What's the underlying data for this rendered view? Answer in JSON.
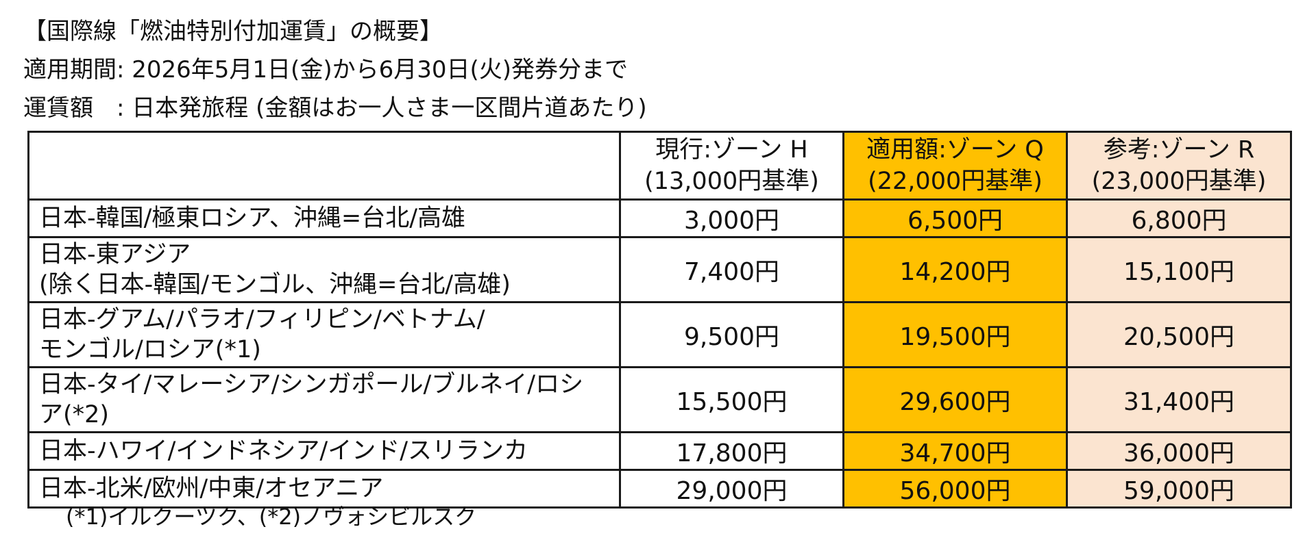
{
  "title": "【国際線「燃油特別付加運賃」の概要】",
  "period_line": "適用期間: 2026年5月1日(金)から6月30日(火)発券分まで",
  "fare_line": "運賃額　: 日本発旅程 (金額はお一人さま一区間片道あたり)",
  "table": {
    "headers": [
      {
        "line1": "",
        "line2": ""
      },
      {
        "line1": "現行:ゾーン H",
        "line2": "(13,000円基準)"
      },
      {
        "line1": "適用額:ゾーン Q",
        "line2": "(22,000円基準)"
      },
      {
        "line1": "参考:ゾーン R",
        "line2": "(23,000円基準)"
      }
    ],
    "rows": [
      {
        "route": [
          "日本-韓国/極東ロシア、沖縄=台北/高雄"
        ],
        "h": "3,000円",
        "q": "6,500円",
        "r": "6,800円"
      },
      {
        "route": [
          "日本-東アジア",
          "(除く日本-韓国/モンゴル、沖縄=台北/高雄)"
        ],
        "h": "7,400円",
        "q": "14,200円",
        "r": "15,100円"
      },
      {
        "route": [
          "日本-グアム/パラオ/フィリピン/ベトナム/",
          "モンゴル/ロシア(*1)"
        ],
        "h": "9,500円",
        "q": "19,500円",
        "r": "20,500円"
      },
      {
        "route": [
          "日本-タイ/マレーシア/シンガポール/ブルネイ/ロシ",
          "ア(*2)"
        ],
        "h": "15,500円",
        "q": "29,600円",
        "r": "31,400円"
      },
      {
        "route": [
          "日本-ハワイ/インドネシア/インド/スリランカ"
        ],
        "h": "17,800円",
        "q": "34,700円",
        "r": "36,000円"
      },
      {
        "route": [
          "日本-北米/欧州/中東/オセアニア"
        ],
        "h": "29,000円",
        "q": "56,000円",
        "r": "59,000円"
      }
    ]
  },
  "footnote": "(*1)イルクーツク、(*2)ノヴォシビルスク",
  "colors": {
    "zone_q_bg": "#ffc000",
    "zone_r_bg": "#fbe4d0",
    "border": "#1a1a1a"
  }
}
